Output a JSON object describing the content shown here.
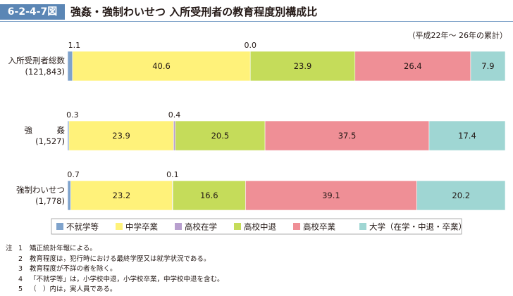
{
  "figure": {
    "number": "6-2-4-7図",
    "title": "強姦・強制わいせつ 入所受刑者の教育程度別構成比",
    "period": "（平成22年～ 26年の累計）"
  },
  "chart_data": {
    "type": "bar",
    "orientation": "horizontal",
    "stacked": true,
    "percent": true,
    "legend_position": "bottom",
    "categories": [
      {
        "name": "入所受刑者総数",
        "count": "(121,843)"
      },
      {
        "name": "強　　　姦",
        "count": "(1,527)"
      },
      {
        "name": "強制わいせつ",
        "count": "(1,778)"
      }
    ],
    "series": [
      {
        "name": "不就学等",
        "color": "#7fa3cc",
        "values": [
          1.1,
          0.3,
          0.7
        ],
        "labels": [
          "1.1",
          "0.3",
          "0.7"
        ]
      },
      {
        "name": "中学卒業",
        "color": "#fff27a",
        "values": [
          40.6,
          23.9,
          23.2
        ],
        "labels": [
          "40.6",
          "23.9",
          "23.2"
        ]
      },
      {
        "name": "高校在学",
        "color": "#b89fce",
        "values": [
          0.0,
          0.4,
          0.1
        ],
        "labels": [
          "0.0",
          "0.4",
          "0.1"
        ]
      },
      {
        "name": "高校中退",
        "color": "#c5dc5a",
        "values": [
          23.9,
          20.5,
          16.6
        ],
        "labels": [
          "23.9",
          "20.5",
          "16.6"
        ]
      },
      {
        "name": "高校卒業",
        "color": "#ef8f96",
        "values": [
          26.4,
          37.5,
          39.1
        ],
        "labels": [
          "26.4",
          "37.5",
          "39.1"
        ]
      },
      {
        "name": "大学（在学・中退・卒業）",
        "color": "#9fd6d3",
        "values": [
          7.9,
          17.4,
          20.2
        ],
        "labels": [
          "7.9",
          "17.4",
          "20.2"
        ]
      }
    ]
  },
  "notes": {
    "label": "注",
    "items": [
      {
        "num": "1",
        "text": "矯正統計年報による。"
      },
      {
        "num": "2",
        "text": "教育程度は，犯行時における最終学歴又は就学状況である。"
      },
      {
        "num": "3",
        "text": "教育程度が不詳の者を除く。"
      },
      {
        "num": "4",
        "text": "「不就学等」は，小学校中退，小学校卒業，中学校中退を含む。"
      },
      {
        "num": "5",
        "text": "（　）内は，実人員である。"
      }
    ]
  }
}
